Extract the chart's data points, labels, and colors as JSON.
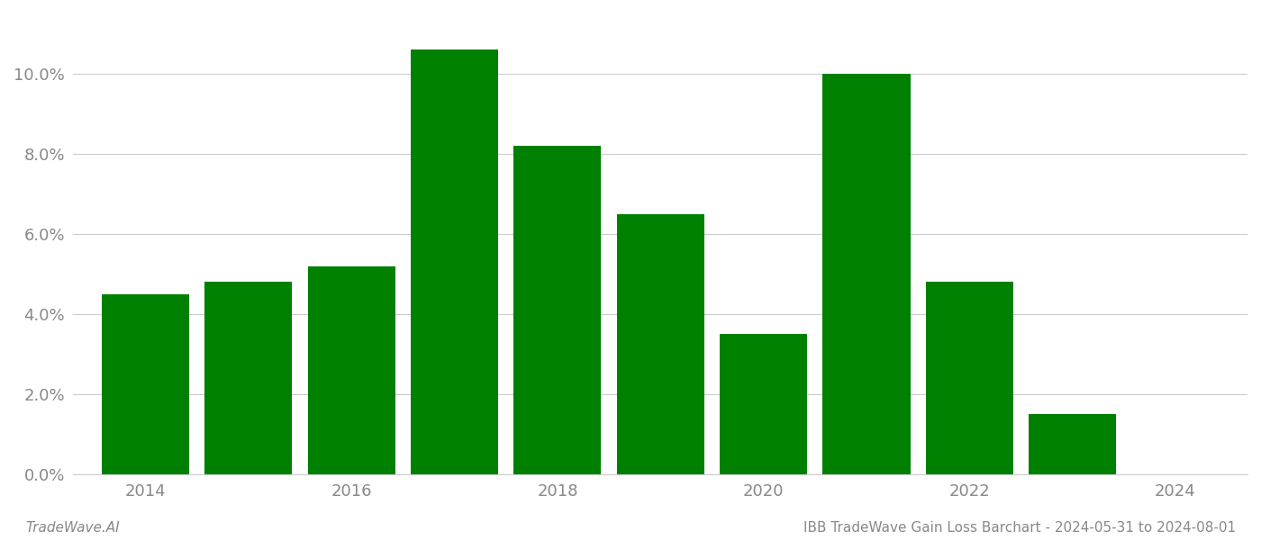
{
  "years": [
    2014,
    2015,
    2016,
    2017,
    2018,
    2019,
    2020,
    2021,
    2022,
    2023
  ],
  "values": [
    0.045,
    0.048,
    0.052,
    0.106,
    0.082,
    0.065,
    0.035,
    0.1,
    0.048,
    0.015
  ],
  "bar_color": "#008000",
  "background_color": "#ffffff",
  "grid_color": "#cccccc",
  "title": "IBB TradeWave Gain Loss Barchart - 2024-05-31 to 2024-08-01",
  "watermark": "TradeWave.AI",
  "ylim": [
    0,
    0.115
  ],
  "yticks": [
    0.0,
    0.02,
    0.04,
    0.06,
    0.08,
    0.1
  ],
  "xticks": [
    2014,
    2016,
    2018,
    2020,
    2022,
    2024
  ],
  "tick_label_color": "#888888",
  "axis_label_fontsize": 13,
  "title_fontsize": 11,
  "watermark_fontsize": 11,
  "bar_width": 0.85,
  "xlim": [
    2013.3,
    2024.7
  ]
}
